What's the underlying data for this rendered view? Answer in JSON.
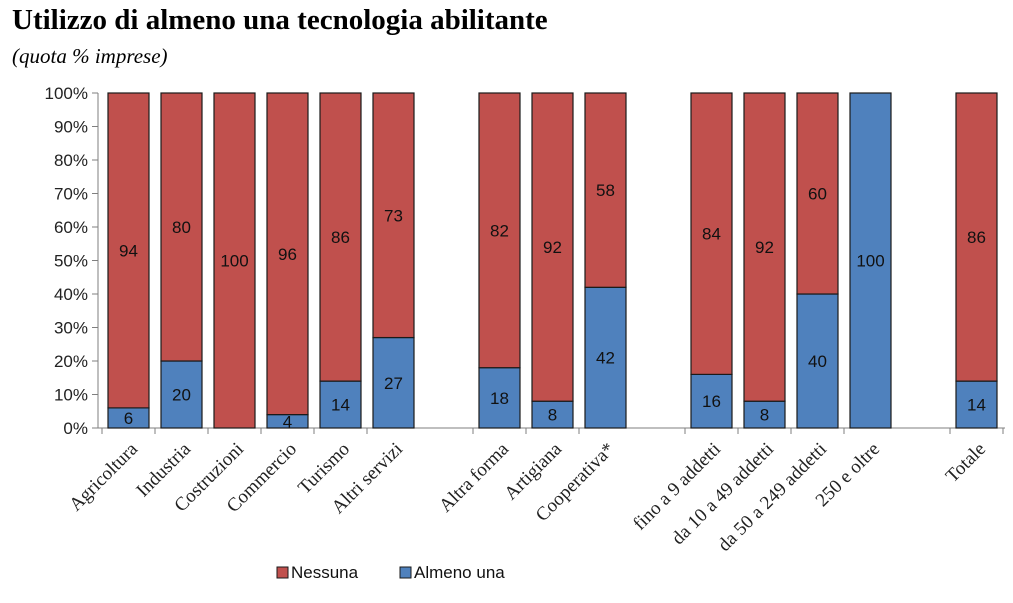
{
  "chart_data": {
    "type": "bar",
    "stacked": true,
    "percent_stacked": true,
    "title": "Utilizzo di almeno una tecnologia abilitante",
    "subtitle": "(quota % imprese)",
    "ylim": [
      0,
      100
    ],
    "yticks": [
      "0%",
      "10%",
      "20%",
      "30%",
      "40%",
      "50%",
      "60%",
      "70%",
      "80%",
      "90%",
      "100%"
    ],
    "groups": [
      [
        "Agricoltura",
        "Industria",
        "Costruzioni",
        "Commercio",
        "Turismo",
        "Altri servizi"
      ],
      [
        "Altra forma",
        "Artigiana",
        "Cooperativa*"
      ],
      [
        "fino a 9 addetti",
        "da 10 a 49 addetti",
        "da 50 a 249 addetti",
        "250 e oltre"
      ],
      [
        "Totale"
      ]
    ],
    "categories": [
      "Agricoltura",
      "Industria",
      "Costruzioni",
      "Commercio",
      "Turismo",
      "Altri servizi",
      "Altra forma",
      "Artigiana",
      "Cooperativa*",
      "fino a 9 addetti",
      "da 10 a 49 addetti",
      "da 50 a 249 addetti",
      "250 e oltre",
      "Totale"
    ],
    "series": [
      {
        "name": "Almeno una",
        "color": "#4F81BD",
        "values": [
          6,
          20,
          0,
          4,
          14,
          27,
          18,
          8,
          42,
          16,
          8,
          40,
          100,
          14
        ]
      },
      {
        "name": "Nessuna",
        "color": "#C0504D",
        "values": [
          94,
          80,
          100,
          96,
          86,
          73,
          82,
          92,
          58,
          84,
          92,
          60,
          0,
          86
        ]
      }
    ],
    "legend_position": "bottom",
    "grid": false
  }
}
